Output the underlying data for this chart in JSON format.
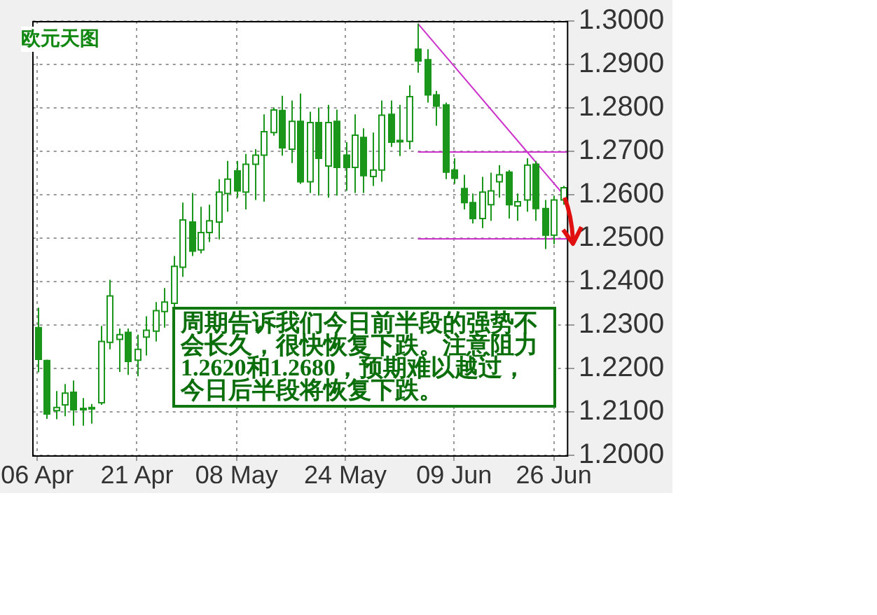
{
  "chart_data": {
    "type": "candlestick",
    "title": "欧元天图",
    "categories": [
      "06 Apr",
      null,
      null,
      null,
      null,
      null,
      null,
      null,
      null,
      null,
      null,
      "21 Apr",
      null,
      null,
      null,
      null,
      null,
      null,
      null,
      null,
      null,
      null,
      "08 May",
      null,
      null,
      null,
      null,
      null,
      null,
      null,
      null,
      null,
      null,
      null,
      "24 May",
      null,
      null,
      null,
      null,
      null,
      null,
      null,
      null,
      null,
      null,
      null,
      "09 Jun",
      null,
      null,
      null,
      null,
      null,
      null,
      null,
      null,
      null,
      null,
      "26 Jun",
      null
    ],
    "ohlc": [
      [
        1.2294,
        1.234,
        1.2191,
        1.2221
      ],
      [
        1.2218,
        1.222,
        1.2084,
        1.2095
      ],
      [
        1.2103,
        1.2148,
        1.2083,
        1.211
      ],
      [
        1.2116,
        1.2164,
        1.209,
        1.2143
      ],
      [
        1.2145,
        1.2172,
        1.2068,
        1.2105
      ],
      [
        1.2108,
        1.2132,
        1.2068,
        1.2106
      ],
      [
        1.2108,
        1.2118,
        1.2073,
        1.211
      ],
      [
        1.2121,
        1.2298,
        1.2116,
        1.2262
      ],
      [
        1.226,
        1.2404,
        1.2244,
        1.2367
      ],
      [
        1.2267,
        1.2292,
        1.2192,
        1.2278
      ],
      [
        1.2283,
        1.2292,
        1.2185,
        1.2216
      ],
      [
        1.2219,
        1.2278,
        1.2182,
        1.2244
      ],
      [
        1.2272,
        1.232,
        1.223,
        1.2288
      ],
      [
        1.2286,
        1.2353,
        1.2262,
        1.2333
      ],
      [
        1.2331,
        1.2385,
        1.2294,
        1.2353
      ],
      [
        1.235,
        1.2459,
        1.2304,
        1.2435
      ],
      [
        1.2433,
        1.2582,
        1.2411,
        1.2542
      ],
      [
        1.2537,
        1.2604,
        1.2459,
        1.247
      ],
      [
        1.2473,
        1.2572,
        1.2465,
        1.2513
      ],
      [
        1.2513,
        1.2577,
        1.2491,
        1.254
      ],
      [
        1.2537,
        1.2636,
        1.2497,
        1.2606
      ],
      [
        1.2603,
        1.2678,
        1.2561,
        1.2636
      ],
      [
        1.2655,
        1.2678,
        1.2593,
        1.2609
      ],
      [
        1.2606,
        1.2694,
        1.2566,
        1.267
      ],
      [
        1.267,
        1.2705,
        1.2588,
        1.2691
      ],
      [
        1.2691,
        1.2785,
        1.2584,
        1.2745
      ],
      [
        1.2743,
        1.2801,
        1.2736,
        1.2795
      ],
      [
        1.2794,
        1.2828,
        1.269,
        1.2708
      ],
      [
        1.2705,
        1.2817,
        1.2673,
        1.2769
      ],
      [
        1.2769,
        1.2833,
        1.2625,
        1.263
      ],
      [
        1.263,
        1.2791,
        1.2604,
        1.2766
      ],
      [
        1.2766,
        1.2801,
        1.2598,
        1.2684
      ],
      [
        1.2666,
        1.2807,
        1.2593,
        1.2766
      ],
      [
        1.2769,
        1.2796,
        1.2598,
        1.2663
      ],
      [
        1.2691,
        1.2721,
        1.2609,
        1.2663
      ],
      [
        1.2663,
        1.2785,
        1.2604,
        1.2737
      ],
      [
        1.2732,
        1.2753,
        1.2604,
        1.2644
      ],
      [
        1.2642,
        1.2743,
        1.262,
        1.2657
      ],
      [
        1.2657,
        1.2817,
        1.263,
        1.2783
      ],
      [
        1.2785,
        1.2817,
        1.271,
        1.2721
      ],
      [
        1.2723,
        1.2807,
        1.2689,
        1.2725
      ],
      [
        1.2723,
        1.2852,
        1.2705,
        1.2826
      ],
      [
        1.2935,
        1.2994,
        1.2881,
        1.2908
      ],
      [
        1.2911,
        1.2935,
        1.2812,
        1.283
      ],
      [
        1.283,
        1.2839,
        1.2759,
        1.2804
      ],
      [
        1.2807,
        1.2812,
        1.2636,
        1.2652
      ],
      [
        1.2657,
        1.2684,
        1.2625,
        1.2638
      ],
      [
        1.2614,
        1.2646,
        1.2566,
        1.2582
      ],
      [
        1.2582,
        1.2603,
        1.2534,
        1.2545
      ],
      [
        1.2545,
        1.2641,
        1.2523,
        1.2606
      ],
      [
        1.2577,
        1.2651,
        1.254,
        1.2609
      ],
      [
        1.263,
        1.2668,
        1.2593,
        1.2646
      ],
      [
        1.2652,
        1.2657,
        1.2545,
        1.2577
      ],
      [
        1.2574,
        1.2603,
        1.254,
        1.2584
      ],
      [
        1.2588,
        1.2684,
        1.2561,
        1.2668
      ],
      [
        1.267,
        1.2678,
        1.254,
        1.2568
      ],
      [
        1.2568,
        1.2588,
        1.2475,
        1.2507
      ],
      [
        1.2507,
        1.2598,
        1.2486,
        1.2588
      ],
      [
        1.2588,
        1.262,
        1.2577,
        1.2616
      ]
    ],
    "color": "#1a961a",
    "series": [
      {
        "type": "line",
        "color": "#cc33cc",
        "values": [
          null,
          null,
          null,
          null,
          null,
          null,
          null,
          null,
          null,
          null,
          null,
          null,
          null,
          null,
          null,
          null,
          null,
          null,
          null,
          null,
          null,
          null,
          null,
          null,
          null,
          null,
          null,
          null,
          null,
          null,
          null,
          null,
          null,
          null,
          null,
          null,
          null,
          null,
          null,
          null,
          null,
          null,
          1.2994,
          null,
          null,
          null,
          null,
          null,
          null,
          null,
          null,
          null,
          null,
          null,
          null,
          null,
          null,
          null,
          1.2602
        ]
      }
    ],
    "ref_lines": [
      {
        "axis": "y",
        "value": 1.27,
        "color": "#cc33cc"
      },
      {
        "axis": "y",
        "value": 1.25,
        "color": "#cc33cc"
      }
    ],
    "ylim": [
      1.2,
      1.3
    ],
    "yticks": [
      {
        "value": 1.2,
        "label": "1.2000"
      },
      {
        "value": 1.21,
        "label": "1.2100"
      },
      {
        "value": 1.22,
        "label": "1.2200"
      },
      {
        "value": 1.23,
        "label": "1.2300"
      },
      {
        "value": 1.24,
        "label": "1.2400"
      },
      {
        "value": 1.25,
        "label": "1.2500"
      },
      {
        "value": 1.26,
        "label": "1.2600"
      },
      {
        "value": 1.27,
        "label": "1.2700"
      },
      {
        "value": 1.28,
        "label": "1.2800"
      },
      {
        "value": 1.29,
        "label": "1.2900"
      },
      {
        "value": 1.3,
        "label": "1.3000"
      }
    ],
    "grid": true,
    "annotations": [
      "周期告诉我们今日前半段的强势不会长久，很快恢复下跌。注意阻力1.2620和1.2680，预期难以越过，今日后半段将恢复下跌。"
    ]
  }
}
